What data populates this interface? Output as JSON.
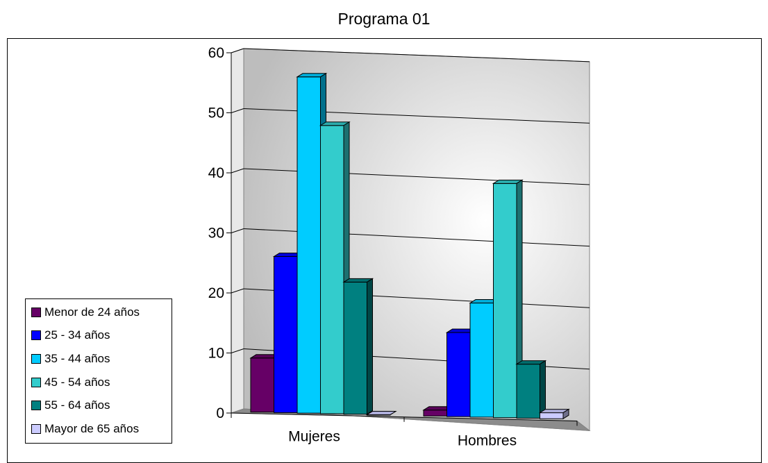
{
  "chart_data": {
    "type": "bar",
    "title": "Programa 01",
    "categories": [
      "Mujeres",
      "Hombres"
    ],
    "yticks": [
      "0",
      "10",
      "20",
      "30",
      "40",
      "50",
      "60"
    ],
    "ylim": [
      0,
      60
    ],
    "grid": true,
    "legend_position": "left",
    "series": [
      {
        "name": "Menor de 24 años",
        "values": [
          9,
          1
        ],
        "color": "#660066"
      },
      {
        "name": "25 - 34 años",
        "values": [
          26,
          14
        ],
        "color": "#0000FF"
      },
      {
        "name": "35 - 44 años",
        "values": [
          56,
          19
        ],
        "color": "#00CCFF"
      },
      {
        "name": "45 - 54 años",
        "values": [
          48,
          39
        ],
        "color": "#33CCCC"
      },
      {
        "name": "55 - 64 años",
        "values": [
          22,
          9
        ],
        "color": "#008080"
      },
      {
        "name": "Mayor de 65 años",
        "values": [
          0,
          1
        ],
        "color": "#CCCCFF"
      }
    ]
  }
}
